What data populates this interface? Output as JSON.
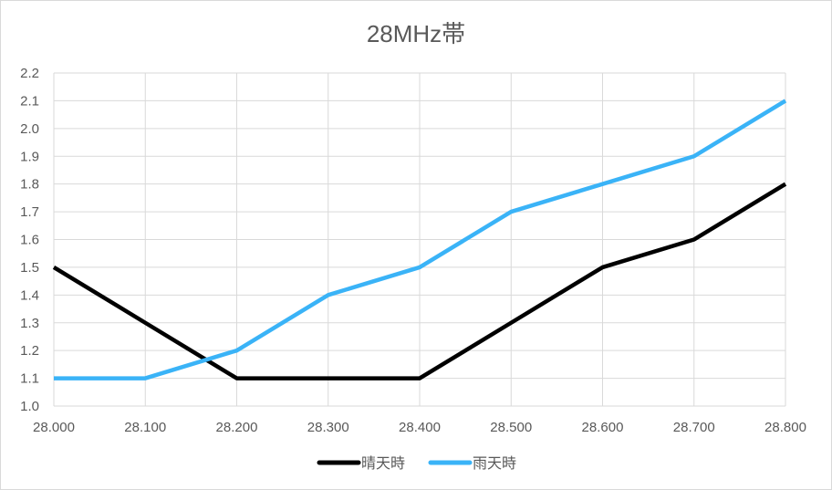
{
  "chart_data": {
    "type": "line",
    "title": "28MHz帯",
    "xlabel": "",
    "ylabel": "",
    "x": [
      "28.000",
      "28.100",
      "28.200",
      "28.300",
      "28.400",
      "28.500",
      "28.600",
      "28.700",
      "28.800"
    ],
    "ylim": [
      1.0,
      2.2
    ],
    "yticks": [
      "1.0",
      "1.1",
      "1.2",
      "1.3",
      "1.4",
      "1.5",
      "1.6",
      "1.7",
      "1.8",
      "1.9",
      "2.0",
      "2.1",
      "2.2"
    ],
    "grid": true,
    "legend": "bottom",
    "series": [
      {
        "name": "晴天時",
        "color": "#000000",
        "values": [
          1.5,
          1.3,
          1.1,
          1.1,
          1.1,
          1.3,
          1.5,
          1.6,
          1.8
        ]
      },
      {
        "name": "雨天時",
        "color": "#3AB3F7",
        "values": [
          1.1,
          1.1,
          1.2,
          1.4,
          1.5,
          1.7,
          1.8,
          1.9,
          2.1
        ]
      }
    ]
  }
}
